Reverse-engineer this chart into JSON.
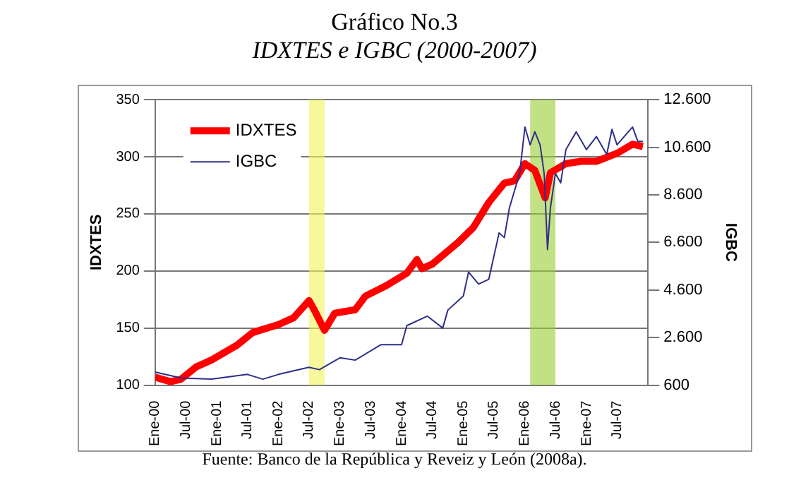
{
  "chart_data": {
    "type": "line",
    "title": "Gráfico No.3",
    "subtitle": "IDXTES e IGBC (2000-2007)",
    "ylabel": "IDXTES",
    "y2label": "IGBC",
    "annotations": [
      "Fuente: Banco de la República y Reveiz y León (2008a)."
    ],
    "xlim": [
      "2000-01",
      "2008-01"
    ],
    "xticks": [
      {
        "value": "2000-01",
        "label": "Ene-00"
      },
      {
        "value": "2000-07",
        "label": "Jul-00"
      },
      {
        "value": "2001-01",
        "label": "Ene-01"
      },
      {
        "value": "2001-07",
        "label": "Jul-01"
      },
      {
        "value": "2002-01",
        "label": "Ene-02"
      },
      {
        "value": "2002-07",
        "label": "Jul-02"
      },
      {
        "value": "2003-01",
        "label": "Ene-03"
      },
      {
        "value": "2003-07",
        "label": "Jul-03"
      },
      {
        "value": "2004-01",
        "label": "Ene-04"
      },
      {
        "value": "2004-07",
        "label": "Jul-04"
      },
      {
        "value": "2005-01",
        "label": "Ene-05"
      },
      {
        "value": "2005-07",
        "label": "Jul-05"
      },
      {
        "value": "2006-01",
        "label": "Ene-06"
      },
      {
        "value": "2006-07",
        "label": "Jul-06"
      },
      {
        "value": "2007-01",
        "label": "Ene-07"
      },
      {
        "value": "2007-07",
        "label": "Jul-07"
      }
    ],
    "ylim": [
      100,
      350
    ],
    "yticks": [
      100,
      150,
      200,
      250,
      300,
      350
    ],
    "y2lim": [
      600,
      12600
    ],
    "y2ticks": [
      {
        "value": 600,
        "label": "600"
      },
      {
        "value": 2600,
        "label": "2.600"
      },
      {
        "value": 4600,
        "label": "4.600"
      },
      {
        "value": 6600,
        "label": "6.600"
      },
      {
        "value": 8600,
        "label": "8.600"
      },
      {
        "value": 10600,
        "label": "10.600"
      },
      {
        "value": 12600,
        "label": "12.600"
      }
    ],
    "grid": "y",
    "legend": "top left",
    "marker": "none",
    "bands": [
      {
        "axis": "x",
        "from": "2002-07",
        "to": "2002-10",
        "color": "#f2f25a"
      },
      {
        "axis": "x",
        "from": "2006-02",
        "to": "2006-07",
        "color": "#9acd32"
      }
    ],
    "series": [
      {
        "name": "IDXTES",
        "color": "#ff0000",
        "x": [
          "2000-01",
          "2000-04",
          "2000-06",
          "2000-09",
          "2000-12",
          "2001-05",
          "2001-08",
          "2002-01",
          "2002-04",
          "2002-07",
          "2002-08",
          "2002-10",
          "2002-12",
          "2003-04",
          "2003-06",
          "2003-10",
          "2004-02",
          "2004-04",
          "2004-05",
          "2004-07",
          "2004-12",
          "2005-03",
          "2005-06",
          "2005-09",
          "2005-11",
          "2006-01",
          "2006-03",
          "2006-05",
          "2006-06",
          "2006-09",
          "2006-12",
          "2007-03",
          "2007-07",
          "2007-10",
          "2007-12"
        ],
        "values": [
          107,
          103,
          105,
          116,
          122,
          135,
          146,
          153,
          159,
          174,
          166,
          148,
          163,
          166,
          178,
          187,
          198,
          210,
          202,
          206,
          225,
          238,
          260,
          277,
          279,
          294,
          288,
          264,
          286,
          294,
          296,
          296,
          303,
          311,
          309
        ]
      },
      {
        "name": "IGBC",
        "color": "#2e2e8a",
        "axis": "y2",
        "x": [
          "2000-01",
          "2000-04",
          "2000-06",
          "2000-12",
          "2001-07",
          "2001-10",
          "2002-01",
          "2002-07",
          "2002-09",
          "2003-01",
          "2003-04",
          "2003-09",
          "2004-01",
          "2004-02",
          "2004-06",
          "2004-09",
          "2004-10",
          "2005-01",
          "2005-02",
          "2005-04",
          "2005-06",
          "2005-08",
          "2005-09",
          "2005-10",
          "2005-12",
          "2006-01",
          "2006-02",
          "2006-03",
          "2006-04",
          "2006-04-25",
          "2006-05-15",
          "2006-06",
          "2006-07",
          "2006-08",
          "2006-09",
          "2006-11",
          "2007-01",
          "2007-03",
          "2007-05",
          "2007-06",
          "2007-07",
          "2007-10",
          "2007-11",
          "2007-12"
        ],
        "values": [
          1150,
          1000,
          900,
          850,
          1050,
          850,
          1050,
          1350,
          1250,
          1750,
          1650,
          2300,
          2300,
          3100,
          3500,
          3000,
          3750,
          4350,
          5350,
          4850,
          5050,
          7000,
          6800,
          8050,
          9500,
          11450,
          10700,
          11250,
          10700,
          9500,
          6300,
          8050,
          9500,
          9100,
          10500,
          11250,
          10500,
          11050,
          10300,
          11350,
          10700,
          11450,
          10850,
          10850
        ]
      }
    ]
  }
}
